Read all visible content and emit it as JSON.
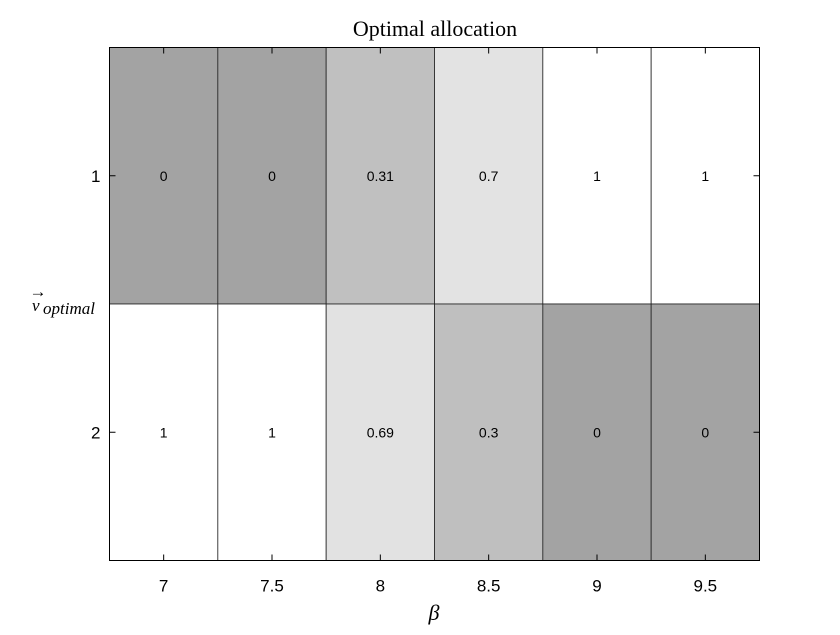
{
  "chart_data": {
    "type": "heatmap",
    "title": "Optimal allocation",
    "xlabel": "β",
    "ylabel_main": "v",
    "ylabel_arrow": "→",
    "ylabel_sub": "optimal",
    "x_ticks": [
      "7",
      "7.5",
      "8",
      "8.5",
      "9",
      "9.5"
    ],
    "y_ticks": [
      "1",
      "2"
    ],
    "values": [
      [
        0,
        0,
        0.31,
        0.7,
        1,
        1
      ],
      [
        1,
        1,
        0.69,
        0.3,
        0,
        0
      ]
    ],
    "cell_labels": [
      [
        "0",
        "0",
        "0.31",
        "0.7",
        "1",
        "1"
      ],
      [
        "1",
        "1",
        "0.69",
        "0.3",
        "0",
        "0"
      ]
    ],
    "colormap": "grayscale",
    "color_range": [
      0,
      1
    ],
    "color_low": "#a3a3a3",
    "color_high": "#ffffff",
    "grid": true,
    "legend": "none"
  }
}
